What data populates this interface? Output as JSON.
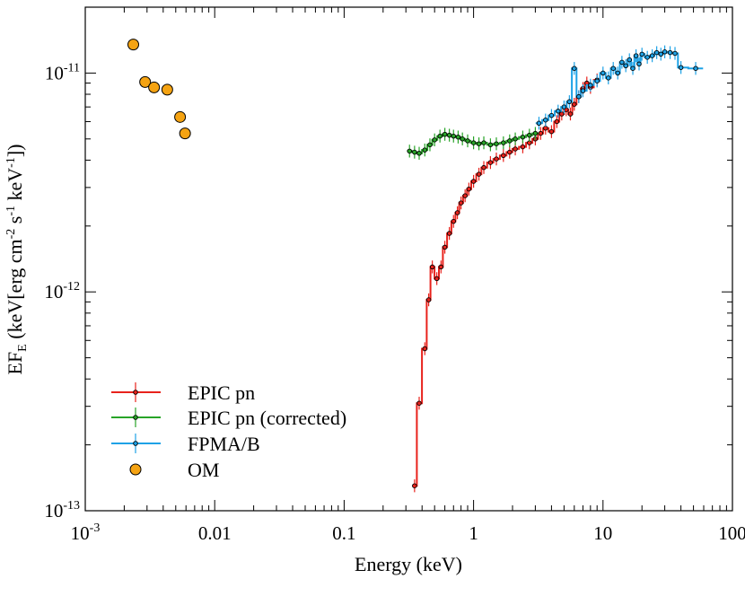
{
  "chart_data": {
    "type": "scatter",
    "xscale": "log",
    "yscale": "log",
    "xlim": [
      0.001,
      100
    ],
    "ylim": [
      1e-13,
      2e-11
    ],
    "xlabel": "Energy (keV)",
    "ylabel": "EF_E (keV[erg cm^-2 s^-1 keV^-1])",
    "ylabel_parts": {
      "main": "EF",
      "sub": "E",
      "open": " (keV[erg cm",
      "e1": "-2",
      "mid1": " s",
      "e2": "-1",
      "mid2": " keV",
      "e3": "-1",
      "close": "])"
    },
    "xticks": [
      {
        "value": 0.001,
        "base": "10",
        "exp": "-3"
      },
      {
        "value": 0.01,
        "label": "0.01"
      },
      {
        "value": 0.1,
        "label": "0.1"
      },
      {
        "value": 1,
        "label": "1"
      },
      {
        "value": 10,
        "label": "10"
      },
      {
        "value": 100,
        "label": "100"
      }
    ],
    "yticks": [
      {
        "value": 1e-13,
        "base": "10",
        "exp": "-13"
      },
      {
        "value": 1e-12,
        "base": "10",
        "exp": "-12"
      },
      {
        "value": 1e-11,
        "base": "10",
        "exp": "-11"
      }
    ],
    "legend_position": "bottom-left",
    "series": [
      {
        "name": "EPIC pn",
        "color": "#e8221c",
        "style": "step-errorbar",
        "x": [
          0.35,
          0.38,
          0.42,
          0.45,
          0.48,
          0.52,
          0.56,
          0.6,
          0.65,
          0.7,
          0.75,
          0.8,
          0.86,
          0.92,
          1.0,
          1.1,
          1.2,
          1.35,
          1.5,
          1.7,
          1.9,
          2.1,
          2.4,
          2.7,
          3.0,
          3.3,
          3.6,
          4.0,
          4.4,
          4.8,
          5.2,
          5.6,
          6.0,
          6.5,
          7.0,
          7.5,
          8.0,
          9.0
        ],
        "y": [
          1.3e-13,
          3.1e-13,
          5.5e-13,
          9.2e-13,
          1.3e-12,
          1.15e-12,
          1.3e-12,
          1.6e-12,
          1.85e-12,
          2.1e-12,
          2.3e-12,
          2.55e-12,
          2.75e-12,
          2.95e-12,
          3.2e-12,
          3.45e-12,
          3.7e-12,
          3.9e-12,
          4.05e-12,
          4.2e-12,
          4.35e-12,
          4.5e-12,
          4.6e-12,
          4.8e-12,
          5e-12,
          5.3e-12,
          5.6e-12,
          5.4e-12,
          6e-12,
          6.5e-12,
          6.8e-12,
          6.5e-12,
          7.2e-12,
          7.8e-12,
          8.5e-12,
          9e-12,
          8.6e-12,
          9.3e-12
        ]
      },
      {
        "name": "EPIC pn (corrected)",
        "color": "#28a428",
        "style": "step-errorbar",
        "x": [
          0.32,
          0.35,
          0.38,
          0.42,
          0.46,
          0.5,
          0.55,
          0.6,
          0.65,
          0.7,
          0.76,
          0.82,
          0.9,
          1.0,
          1.1,
          1.2,
          1.35,
          1.5,
          1.7,
          1.9,
          2.1,
          2.4,
          2.7,
          3.0
        ],
        "y": [
          4.4e-12,
          4.35e-12,
          4.3e-12,
          4.45e-12,
          4.7e-12,
          4.95e-12,
          5.15e-12,
          5.25e-12,
          5.2e-12,
          5.15e-12,
          5.1e-12,
          5e-12,
          4.9e-12,
          4.8e-12,
          4.75e-12,
          4.8e-12,
          4.7e-12,
          4.75e-12,
          4.8e-12,
          4.9e-12,
          5e-12,
          5.1e-12,
          5.2e-12,
          5.3e-12
        ]
      },
      {
        "name": "FPMA/B",
        "color": "#1ea2e6",
        "style": "step-errorbar",
        "x": [
          3.2,
          3.6,
          4.0,
          4.5,
          5.0,
          5.5,
          6.0,
          6.5,
          7.0,
          8.0,
          9.0,
          10.0,
          11.0,
          12.0,
          13.0,
          14.0,
          15.0,
          16.0,
          17.0,
          18.0,
          19.0,
          20.0,
          22.0,
          24.0,
          26.0,
          28.0,
          30.0,
          33.0,
          36.0,
          40.0,
          52.0
        ],
        "y": [
          5.9e-12,
          6.1e-12,
          6.4e-12,
          6.7e-12,
          7e-12,
          7.4e-12,
          1.05e-11,
          7.8e-12,
          8.3e-12,
          8.8e-12,
          9.2e-12,
          1e-11,
          9.5e-12,
          1.05e-11,
          1e-11,
          1.12e-11,
          1.08e-11,
          1.15e-11,
          1.05e-11,
          1.2e-11,
          1.1e-11,
          1.22e-11,
          1.18e-11,
          1.2e-11,
          1.24e-11,
          1.22e-11,
          1.25e-11,
          1.24e-11,
          1.23e-11,
          1.06e-11,
          1.05e-11
        ]
      },
      {
        "name": "OM",
        "color": "#f5a312",
        "style": "marker",
        "x": [
          0.00235,
          0.0029,
          0.0034,
          0.0043,
          0.0054,
          0.0059
        ],
        "y": [
          1.35e-11,
          9.1e-12,
          8.6e-12,
          8.4e-12,
          6.3e-12,
          5.3e-12
        ]
      }
    ]
  }
}
